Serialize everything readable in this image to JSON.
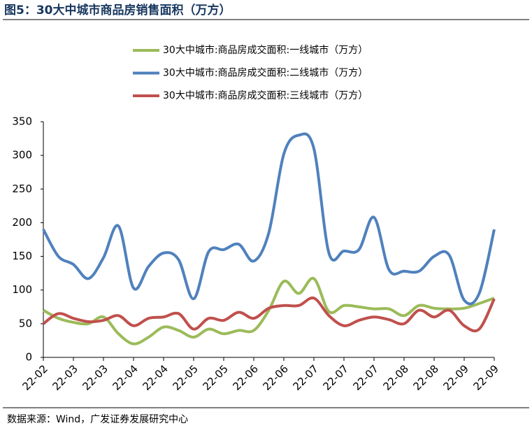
{
  "title": "图5：30大中城市商品房销售面积（万方）",
  "source": "数据来源：Wind，广发证券发展研究中心",
  "chart_data": {
    "type": "line",
    "categories": [
      "22-02",
      null,
      "22-03",
      null,
      "22-03",
      null,
      "22-04",
      null,
      "22-04",
      null,
      "22-05",
      null,
      "22-05",
      null,
      "22-06",
      null,
      "22-06",
      null,
      "22-07",
      null,
      "22-07",
      null,
      "22-07",
      null,
      "22-08",
      null,
      "22-08",
      null,
      "22-09",
      null,
      "22-09"
    ],
    "series": [
      {
        "name": "30大中城市:商品房成交面积:一线城市（万方）",
        "color": "#9bbb59",
        "values": [
          70,
          58,
          52,
          50,
          60,
          35,
          20,
          30,
          45,
          40,
          30,
          42,
          35,
          40,
          40,
          70,
          113,
          95,
          117,
          68,
          77,
          75,
          72,
          72,
          62,
          77,
          73,
          72,
          73,
          80,
          88
        ]
      },
      {
        "name": "30大中城市:商品房成交面积:二线城市（万方）",
        "color": "#4f81bd",
        "values": [
          190,
          150,
          138,
          117,
          148,
          195,
          103,
          135,
          155,
          145,
          87,
          157,
          160,
          168,
          143,
          185,
          302,
          330,
          310,
          155,
          158,
          160,
          208,
          130,
          128,
          128,
          150,
          152,
          85,
          95,
          190
        ]
      },
      {
        "name": "30大中城市:商品房成交面积:三线城市（万方）",
        "color": "#c0504d",
        "values": [
          50,
          65,
          58,
          53,
          55,
          62,
          47,
          58,
          60,
          65,
          42,
          58,
          55,
          67,
          58,
          73,
          77,
          77,
          88,
          62,
          47,
          55,
          60,
          56,
          50,
          70,
          60,
          70,
          47,
          42,
          87
        ]
      }
    ],
    "ylim": [
      0,
      350
    ],
    "yticks": [
      0,
      50,
      100,
      150,
      200,
      250,
      300,
      350
    ],
    "grid": false
  }
}
